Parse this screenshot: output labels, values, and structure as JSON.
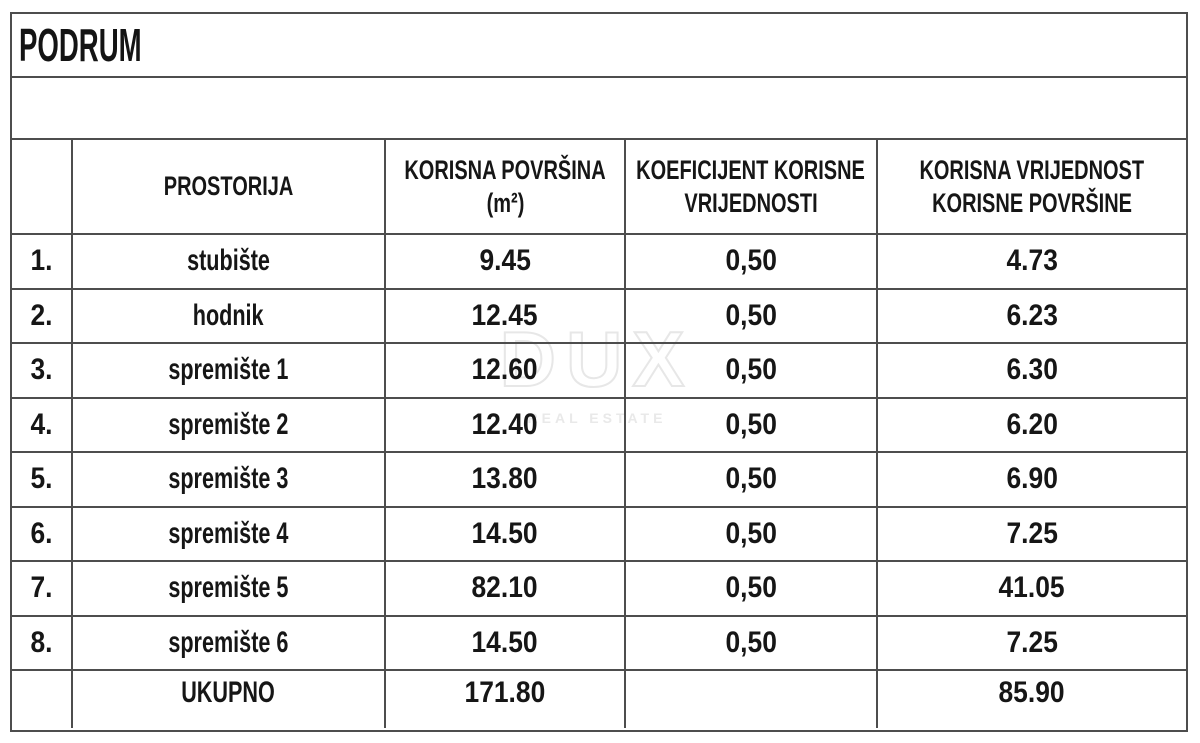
{
  "page": {
    "title": "PODRUM"
  },
  "watermark": {
    "brand": "DUX",
    "subtitle": "REAL ESTATE"
  },
  "table": {
    "header": {
      "room": "PROSTORIJA",
      "area_line1": "KORISNA POVRŠINA",
      "area_line2": "(m²)",
      "coeff_line1": "KOEFICIJENT KORISNE",
      "coeff_line2": "VRIJEDNOSTI",
      "value_line1": "KORISNA VRIJEDNOST",
      "value_line2": "KORISNE POVRŠINE"
    },
    "rows": [
      {
        "num": "1.",
        "room": "stubište",
        "area": "9.45",
        "coeff": "0,50",
        "value": "4.73"
      },
      {
        "num": "2.",
        "room": "hodnik",
        "area": "12.45",
        "coeff": "0,50",
        "value": "6.23"
      },
      {
        "num": "3.",
        "room": "spremište 1",
        "area": "12.60",
        "coeff": "0,50",
        "value": "6.30"
      },
      {
        "num": "4.",
        "room": "spremište 2",
        "area": "12.40",
        "coeff": "0,50",
        "value": "6.20"
      },
      {
        "num": "5.",
        "room": "spremište 3",
        "area": "13.80",
        "coeff": "0,50",
        "value": "6.90"
      },
      {
        "num": "6.",
        "room": "spremište 4",
        "area": "14.50",
        "coeff": "0,50",
        "value": "7.25"
      },
      {
        "num": "7.",
        "room": "spremište 5",
        "area": "82.10",
        "coeff": "0,50",
        "value": "41.05"
      },
      {
        "num": "8.",
        "room": "spremište 6",
        "area": "14.50",
        "coeff": "0,50",
        "value": "7.25"
      }
    ],
    "total": {
      "label": "UKUPNO",
      "area": "171.80",
      "value": "85.90"
    }
  }
}
